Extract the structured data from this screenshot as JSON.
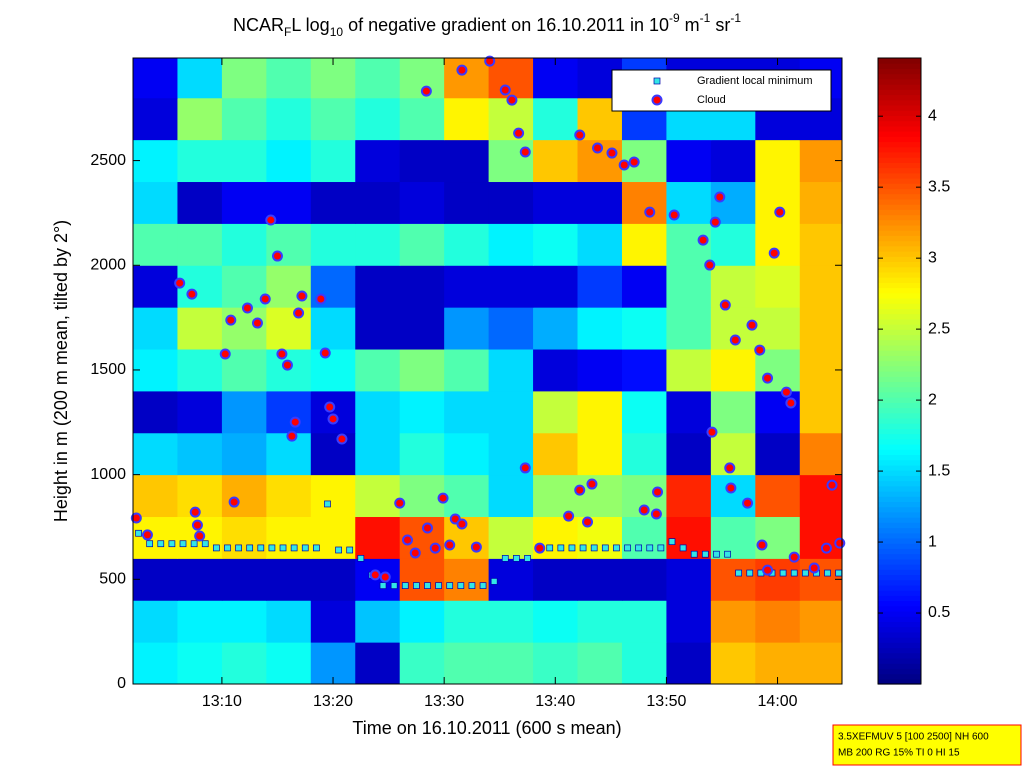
{
  "chart_data": {
    "type": "heatmap",
    "title_parts": [
      {
        "text": "NCAR",
        "shift": "none"
      },
      {
        "text": "F",
        "shift": "sub"
      },
      {
        "text": "L log",
        "shift": "none"
      },
      {
        "text": "10",
        "shift": "sub"
      },
      {
        "text": " of negative gradient on 16.10.2011 in 10",
        "shift": "none"
      },
      {
        "text": "-9",
        "shift": "super"
      },
      {
        "text": " m",
        "shift": "none"
      },
      {
        "text": "-1",
        "shift": "super"
      },
      {
        "text": " sr",
        "shift": "none"
      },
      {
        "text": "-1",
        "shift": "super"
      }
    ],
    "xlabel": "Time on 16.10.2011 (600 s mean)",
    "ylabel": "Height in m (200 m mean, tilted by 2°)",
    "xlim": [
      782,
      845.8
    ],
    "xticks": [
      {
        "value": 790,
        "label": "13:10"
      },
      {
        "value": 800,
        "label": "13:20"
      },
      {
        "value": 810,
        "label": "13:30"
      },
      {
        "value": 820,
        "label": "13:40"
      },
      {
        "value": 830,
        "label": "13:50"
      },
      {
        "value": 840,
        "label": "14:00"
      }
    ],
    "ylim": [
      0,
      2990
    ],
    "yticks": [
      0,
      500,
      1000,
      1500,
      2000,
      2500
    ],
    "colormap": "jet",
    "clim": [
      0,
      4.41
    ],
    "cticks": [
      0.5,
      1,
      1.5,
      2,
      2.5,
      3,
      3.5,
      4
    ],
    "x_edges": [
      782,
      786,
      790,
      794,
      798,
      802,
      806,
      810,
      814,
      818,
      822,
      826,
      830,
      834,
      838,
      842,
      845.8
    ],
    "y_edges": [
      0,
      200,
      400,
      600,
      800,
      1000,
      1200,
      1400,
      1600,
      1800,
      2000,
      2200,
      2400,
      2600,
      2800,
      2990
    ],
    "z": [
      [
        1.6,
        1.7,
        1.8,
        1.7,
        1.2,
        0.3,
        1.9,
        2.0,
        2.0,
        1.9,
        2.0,
        1.8,
        0.3,
        3.0,
        3.1,
        3.1
      ],
      [
        1.5,
        1.6,
        1.6,
        1.5,
        0.4,
        1.4,
        1.6,
        1.8,
        1.8,
        1.7,
        1.8,
        1.8,
        0.4,
        3.2,
        3.3,
        3.2
      ],
      [
        0.3,
        0.3,
        0.3,
        0.3,
        0.3,
        0.5,
        3.5,
        3.3,
        0.4,
        0.3,
        0.3,
        0.3,
        0.4,
        3.5,
        3.6,
        3.5
      ],
      [
        2.8,
        2.8,
        2.9,
        2.8,
        2.8,
        3.8,
        3.5,
        3.0,
        2.5,
        2.8,
        2.7,
        2.0,
        3.8,
        2.0,
        2.2,
        3.8
      ],
      [
        3.0,
        2.9,
        3.1,
        2.9,
        2.8,
        2.5,
        2.2,
        2.0,
        1.5,
        2.3,
        2.3,
        2.2,
        3.7,
        1.5,
        3.5,
        3.8
      ],
      [
        1.5,
        1.4,
        1.3,
        1.5,
        0.3,
        1.5,
        1.8,
        1.6,
        1.5,
        3.0,
        2.8,
        1.8,
        0.3,
        2.5,
        0.3,
        3.3
      ],
      [
        0.3,
        0.4,
        1.2,
        0.8,
        0.4,
        1.5,
        1.6,
        1.5,
        1.5,
        2.5,
        2.8,
        1.7,
        0.4,
        2.2,
        0.5,
        3.0
      ],
      [
        1.6,
        1.8,
        2.0,
        1.8,
        1.7,
        2.0,
        2.2,
        2.0,
        1.5,
        0.4,
        0.5,
        0.6,
        2.5,
        2.8,
        2.2,
        3.0
      ],
      [
        1.5,
        2.5,
        2.3,
        2.6,
        1.5,
        0.3,
        0.3,
        1.2,
        1.0,
        1.3,
        1.6,
        1.7,
        2.0,
        2.5,
        2.5,
        3.0
      ],
      [
        0.4,
        1.8,
        2.0,
        2.3,
        1.0,
        0.3,
        0.3,
        0.4,
        0.4,
        0.4,
        0.8,
        0.5,
        2.0,
        2.5,
        2.6,
        3.0
      ],
      [
        2.0,
        2.0,
        1.8,
        2.0,
        1.8,
        1.8,
        2.0,
        1.8,
        1.6,
        1.7,
        1.5,
        2.8,
        2.0,
        1.8,
        2.8,
        3.0
      ],
      [
        1.5,
        0.3,
        0.5,
        0.5,
        0.3,
        0.3,
        0.4,
        0.3,
        0.3,
        0.4,
        0.4,
        3.3,
        1.5,
        1.3,
        2.8,
        3.1
      ],
      [
        1.6,
        1.8,
        1.8,
        1.6,
        1.8,
        0.4,
        0.3,
        0.3,
        2.2,
        3.0,
        3.2,
        2.2,
        0.5,
        0.4,
        2.8,
        3.2
      ],
      [
        0.4,
        2.3,
        2.0,
        1.8,
        2.0,
        1.8,
        2.0,
        2.8,
        2.5,
        1.8,
        3.0,
        0.8,
        1.5,
        1.5,
        0.4,
        0.4
      ],
      [
        0.5,
        1.5,
        2.2,
        2.0,
        2.2,
        2.0,
        2.2,
        3.2,
        3.5,
        0.5,
        0.4,
        0.8,
        0.4,
        0.4,
        0.4,
        0.5
      ]
    ],
    "series": [
      {
        "name": "Gradient local minimum",
        "marker": "square",
        "color": "#33e6e6",
        "edgecolor": "#0000aa",
        "x": [
          782.5,
          783.5,
          784.5,
          785.5,
          786.5,
          787.5,
          788.5,
          789.5,
          790.5,
          791.5,
          792.5,
          793.5,
          794.5,
          795.5,
          796.5,
          797.5,
          798.5,
          799.5,
          800.5,
          801.5,
          802.5,
          803.5,
          804.5,
          805.5,
          806.5,
          807.5,
          808.5,
          809.5,
          810.5,
          811.5,
          812.5,
          813.5,
          814.5,
          815.5,
          816.5,
          817.5,
          818.5,
          819.5,
          820.5,
          821.5,
          822.5,
          823.5,
          824.5,
          825.5,
          826.5,
          827.5,
          828.5,
          829.5,
          830.5,
          831.5,
          832.5,
          833.5,
          834.5,
          835.5,
          836.5,
          837.5,
          838.5,
          839.5,
          840.5,
          841.5,
          842.5,
          843.5,
          844.5,
          845.5
        ],
        "values": [
          720,
          670,
          670,
          670,
          670,
          670,
          670,
          650,
          650,
          650,
          650,
          650,
          650,
          650,
          650,
          650,
          650,
          860,
          640,
          640,
          600,
          520,
          470,
          470,
          470,
          470,
          470,
          470,
          470,
          470,
          470,
          470,
          490,
          600,
          600,
          600,
          650,
          650,
          650,
          650,
          650,
          650,
          650,
          650,
          650,
          650,
          650,
          650,
          680,
          650,
          620,
          620,
          620,
          620,
          530,
          530,
          530,
          530,
          530,
          530,
          530,
          530,
          530,
          530
        ]
      },
      {
        "name": "Cloud",
        "marker": "circle",
        "color": "#ff0000",
        "edgecolor": "#3a3aff",
        "x": [
          782.3,
          783.3,
          786.2,
          787.3,
          787.6,
          787.8,
          788.0,
          790.3,
          790.8,
          791.1,
          792.3,
          793.2,
          793.9,
          794.4,
          795.0,
          795.4,
          795.9,
          796.3,
          796.6,
          796.9,
          797.2,
          798.9,
          799.3,
          799.7,
          800.0,
          800.8,
          803.8,
          804.7,
          806.0,
          806.7,
          807.4,
          808.5,
          809.2,
          809.9,
          810.5,
          811.0,
          811.6,
          812.9,
          808.4,
          811.6,
          814.1,
          815.5,
          816.1,
          816.7,
          817.3,
          817.3,
          818.6,
          821.2,
          822.2,
          822.9,
          823.3,
          822.2,
          823.8,
          825.1,
          826.2,
          827.1,
          828.0,
          829.2,
          829.1,
          828.5,
          830.7,
          833.3,
          833.9,
          834.4,
          834.8,
          835.3,
          835.7,
          835.8,
          836.2,
          834.1,
          837.3,
          837.7,
          838.4,
          839.1,
          839.7,
          840.2,
          840.8,
          841.2,
          839.1,
          838.6,
          841.5,
          843.3,
          844.4,
          844.9,
          845.6
        ],
        "values": [
          793,
          712,
          1915,
          1862,
          821,
          759,
          707,
          1576,
          1738,
          869,
          1796,
          1724,
          1839,
          2216,
          2044,
          1576,
          1523,
          1184,
          1251,
          1772,
          1853,
          1839,
          1581,
          1323,
          1266,
          1170,
          521,
          511,
          864,
          688,
          626,
          745,
          649,
          888,
          664,
          788,
          764,
          654,
          2832,
          2932,
          2975,
          2837,
          2789,
          2631,
          2541,
          1032,
          649,
          802,
          926,
          774,
          955,
          2622,
          2560,
          2536,
          2479,
          2493,
          831,
          917,
          812,
          2254,
          2240,
          2120,
          2001,
          2206,
          2326,
          1810,
          1032,
          936,
          1643,
          1203,
          864,
          1714,
          1595,
          1461,
          2058,
          2254,
          1394,
          1342,
          544,
          664,
          606,
          554,
          649,
          950,
          673
        ]
      }
    ],
    "legend": "upper right",
    "annotation": [
      "3.5XEFMUV 5 [100 2500] NH 600",
      "MB 200 RG 15% TI 0 HI 15"
    ]
  }
}
